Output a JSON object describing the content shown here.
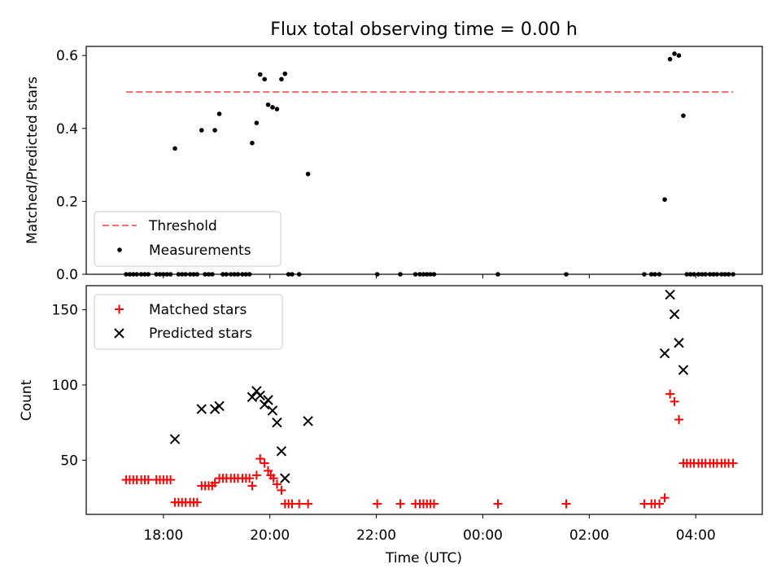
{
  "colors": {
    "threshold": "#ff6e6e",
    "measurement": "#000000",
    "matched": "#ff0000",
    "predicted": "#000000"
  },
  "chart_data": [
    {
      "type": "scatter",
      "title": "Flux total observing time = 0.00 h",
      "xlabel": "",
      "ylabel": "Matched/Predicted stars",
      "xlim": [
        "16:33",
        "05:15"
      ],
      "ylim": [
        0,
        0.625
      ],
      "yticks": [
        0.0,
        0.2,
        0.4,
        0.6
      ],
      "ytick_labels": [
        "0.0",
        "0.2",
        "0.4",
        "0.6"
      ],
      "legend_position": "lower-left",
      "threshold": {
        "name": "Threshold",
        "style": "dashed",
        "value": 0.5,
        "x_range": [
          "17:18",
          "04:42"
        ]
      },
      "series": [
        {
          "name": "Measurements",
          "marker": "dot",
          "points": [
            [
              "17:18",
              0
            ],
            [
              "17:22",
              0
            ],
            [
              "17:26",
              0
            ],
            [
              "17:30",
              0
            ],
            [
              "17:35",
              0
            ],
            [
              "17:39",
              0
            ],
            [
              "17:43",
              0
            ],
            [
              "17:52",
              0
            ],
            [
              "17:56",
              0
            ],
            [
              "18:00",
              0
            ],
            [
              "18:04",
              0
            ],
            [
              "18:08",
              0
            ],
            [
              "18:13",
              0.345
            ],
            [
              "18:17",
              0
            ],
            [
              "18:21",
              0
            ],
            [
              "18:25",
              0
            ],
            [
              "18:30",
              0
            ],
            [
              "18:34",
              0
            ],
            [
              "18:38",
              0
            ],
            [
              "18:43",
              0.395
            ],
            [
              "18:47",
              0
            ],
            [
              "18:51",
              0
            ],
            [
              "18:55",
              0
            ],
            [
              "18:58",
              0.395
            ],
            [
              "19:03",
              0.44
            ],
            [
              "19:07",
              0
            ],
            [
              "19:11",
              0
            ],
            [
              "19:16",
              0
            ],
            [
              "19:20",
              0
            ],
            [
              "19:24",
              0
            ],
            [
              "19:29",
              0
            ],
            [
              "19:33",
              0
            ],
            [
              "19:37",
              0
            ],
            [
              "19:40",
              0.36
            ],
            [
              "19:45",
              0.415
            ],
            [
              "19:49",
              0.548
            ],
            [
              "19:54",
              0.535
            ],
            [
              "19:58",
              0.465
            ],
            [
              "20:03",
              0.458
            ],
            [
              "20:08",
              0.453
            ],
            [
              "20:13",
              0.535
            ],
            [
              "20:17",
              0.55
            ],
            [
              "20:21",
              0
            ],
            [
              "20:25",
              0
            ],
            [
              "20:33",
              0
            ],
            [
              "20:43",
              0.275
            ],
            [
              "22:01",
              0
            ],
            [
              "22:27",
              0
            ],
            [
              "22:44",
              0
            ],
            [
              "22:49",
              0
            ],
            [
              "22:53",
              0
            ],
            [
              "22:57",
              0
            ],
            [
              "23:01",
              0
            ],
            [
              "23:05",
              0
            ],
            [
              "00:17",
              0
            ],
            [
              "01:34",
              0
            ],
            [
              "03:02",
              0
            ],
            [
              "03:10",
              0
            ],
            [
              "03:14",
              0
            ],
            [
              "03:19",
              0
            ],
            [
              "03:25",
              0.205
            ],
            [
              "03:31",
              0.59
            ],
            [
              "03:36",
              0.605
            ],
            [
              "03:41",
              0.6
            ],
            [
              "03:46",
              0.435
            ],
            [
              "03:50",
              0
            ],
            [
              "03:54",
              0
            ],
            [
              "03:58",
              0
            ],
            [
              "04:03",
              0
            ],
            [
              "04:07",
              0
            ],
            [
              "04:11",
              0
            ],
            [
              "04:16",
              0
            ],
            [
              "04:20",
              0
            ],
            [
              "04:24",
              0
            ],
            [
              "04:29",
              0
            ],
            [
              "04:33",
              0
            ],
            [
              "04:37",
              0
            ],
            [
              "04:42",
              0
            ]
          ]
        }
      ]
    },
    {
      "type": "scatter",
      "title": "",
      "xlabel": "Time (UTC)",
      "ylabel": "Count",
      "xlim": [
        "16:33",
        "05:15"
      ],
      "ylim": [
        14,
        166
      ],
      "yticks": [
        50,
        100,
        150
      ],
      "ytick_labels": [
        "50",
        "100",
        "150"
      ],
      "xticks": [
        "18:00",
        "20:00",
        "22:00",
        "00:00",
        "02:00",
        "04:00"
      ],
      "legend_position": "upper-left",
      "series": [
        {
          "name": "Matched stars",
          "marker": "plus",
          "points": [
            [
              "17:18",
              37
            ],
            [
              "17:22",
              37
            ],
            [
              "17:26",
              37
            ],
            [
              "17:30",
              37
            ],
            [
              "17:35",
              37
            ],
            [
              "17:39",
              37
            ],
            [
              "17:43",
              37
            ],
            [
              "17:52",
              37
            ],
            [
              "17:56",
              37
            ],
            [
              "18:00",
              37
            ],
            [
              "18:04",
              37
            ],
            [
              "18:08",
              37
            ],
            [
              "18:13",
              22
            ],
            [
              "18:17",
              22
            ],
            [
              "18:21",
              22
            ],
            [
              "18:25",
              22
            ],
            [
              "18:30",
              22
            ],
            [
              "18:34",
              22
            ],
            [
              "18:38",
              22
            ],
            [
              "18:43",
              33
            ],
            [
              "18:47",
              33
            ],
            [
              "18:51",
              33
            ],
            [
              "18:55",
              33
            ],
            [
              "18:58",
              35
            ],
            [
              "19:03",
              38
            ],
            [
              "19:07",
              38
            ],
            [
              "19:11",
              38
            ],
            [
              "19:16",
              38
            ],
            [
              "19:20",
              38
            ],
            [
              "19:24",
              38
            ],
            [
              "19:29",
              38
            ],
            [
              "19:33",
              38
            ],
            [
              "19:37",
              38
            ],
            [
              "19:40",
              33
            ],
            [
              "19:45",
              40
            ],
            [
              "19:49",
              51
            ],
            [
              "19:54",
              48
            ],
            [
              "19:58",
              43
            ],
            [
              "20:01",
              40
            ],
            [
              "20:04",
              38
            ],
            [
              "20:08",
              34
            ],
            [
              "20:13",
              30
            ],
            [
              "20:17",
              21
            ],
            [
              "20:21",
              21
            ],
            [
              "20:25",
              21
            ],
            [
              "20:33",
              21
            ],
            [
              "20:43",
              21
            ],
            [
              "22:01",
              21
            ],
            [
              "22:27",
              21
            ],
            [
              "22:44",
              21
            ],
            [
              "22:49",
              21
            ],
            [
              "22:53",
              21
            ],
            [
              "22:57",
              21
            ],
            [
              "23:01",
              21
            ],
            [
              "23:05",
              21
            ],
            [
              "00:17",
              21
            ],
            [
              "01:34",
              21
            ],
            [
              "03:02",
              21
            ],
            [
              "03:10",
              21
            ],
            [
              "03:14",
              21
            ],
            [
              "03:19",
              21
            ],
            [
              "03:25",
              25
            ],
            [
              "03:31",
              94
            ],
            [
              "03:36",
              89
            ],
            [
              "03:41",
              77
            ],
            [
              "03:46",
              48
            ],
            [
              "03:50",
              48
            ],
            [
              "03:54",
              48
            ],
            [
              "03:58",
              48
            ],
            [
              "04:03",
              48
            ],
            [
              "04:07",
              48
            ],
            [
              "04:11",
              48
            ],
            [
              "04:16",
              48
            ],
            [
              "04:20",
              48
            ],
            [
              "04:24",
              48
            ],
            [
              "04:29",
              48
            ],
            [
              "04:33",
              48
            ],
            [
              "04:37",
              48
            ],
            [
              "04:42",
              48
            ]
          ]
        },
        {
          "name": "Predicted stars",
          "marker": "x",
          "points": [
            [
              "18:13",
              64
            ],
            [
              "18:43",
              84
            ],
            [
              "18:58",
              84
            ],
            [
              "19:03",
              86
            ],
            [
              "19:40",
              92
            ],
            [
              "19:45",
              96
            ],
            [
              "19:49",
              93
            ],
            [
              "19:54",
              87
            ],
            [
              "19:58",
              90
            ],
            [
              "20:03",
              83
            ],
            [
              "20:08",
              75
            ],
            [
              "20:13",
              56
            ],
            [
              "20:17",
              38
            ],
            [
              "20:43",
              76
            ],
            [
              "03:25",
              121
            ],
            [
              "03:31",
              160
            ],
            [
              "03:36",
              147
            ],
            [
              "03:41",
              128
            ],
            [
              "03:46",
              110
            ]
          ]
        }
      ]
    }
  ]
}
